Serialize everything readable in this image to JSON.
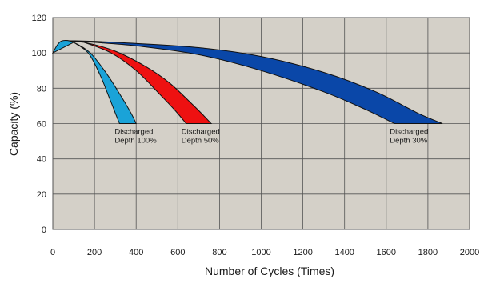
{
  "chart_data": {
    "type": "area",
    "title": "",
    "xlabel": "Number of Cycles (Times)",
    "ylabel": "Capacity (%)",
    "xlim": [
      0,
      2000
    ],
    "ylim": [
      0,
      120
    ],
    "x_ticks": [
      "0",
      "200",
      "400",
      "600",
      "800",
      "1000",
      "1200",
      "1400",
      "1600",
      "1800",
      "2000"
    ],
    "y_ticks": [
      "0",
      "20",
      "40",
      "60",
      "80",
      "100",
      "120"
    ],
    "grid": true,
    "plot_background": "#d4d0c8",
    "series": [
      {
        "label_lines": [
          "Discharged",
          "Depth 100%"
        ],
        "color": "#1aa3d8",
        "upper": [
          [
            0,
            100
          ],
          [
            25,
            105
          ],
          [
            50,
            107
          ],
          [
            100,
            106
          ],
          [
            180,
            100
          ],
          [
            260,
            88
          ],
          [
            330,
            75
          ],
          [
            375,
            66
          ],
          [
            400,
            60
          ]
        ],
        "lower": [
          [
            320,
            60
          ],
          [
            300,
            66
          ],
          [
            270,
            75
          ],
          [
            225,
            88
          ],
          [
            170,
            100
          ],
          [
            100,
            106
          ]
        ]
      },
      {
        "label_lines": [
          "Discharged",
          "Depth 50%"
        ],
        "color": "#ee1111",
        "upper": [
          [
            60,
            107
          ],
          [
            150,
            106
          ],
          [
            300,
            101
          ],
          [
            450,
            92
          ],
          [
            560,
            83
          ],
          [
            660,
            72
          ],
          [
            720,
            65
          ],
          [
            760,
            60
          ]
        ],
        "lower": [
          [
            640,
            60
          ],
          [
            590,
            67
          ],
          [
            510,
            77
          ],
          [
            400,
            90
          ],
          [
            280,
            100
          ],
          [
            150,
            106
          ]
        ]
      },
      {
        "label_lines": [
          "Discharged",
          "Depth 30%"
        ],
        "color": "#0a47a8",
        "upper": [
          [
            60,
            107
          ],
          [
            300,
            106
          ],
          [
            700,
            103
          ],
          [
            1000,
            98
          ],
          [
            1300,
            89
          ],
          [
            1550,
            78
          ],
          [
            1750,
            66
          ],
          [
            1870,
            60
          ]
        ],
        "lower": [
          [
            1640,
            60
          ],
          [
            1500,
            68
          ],
          [
            1300,
            78
          ],
          [
            1000,
            90
          ],
          [
            700,
            99
          ],
          [
            400,
            104
          ],
          [
            200,
            106
          ]
        ]
      }
    ]
  }
}
